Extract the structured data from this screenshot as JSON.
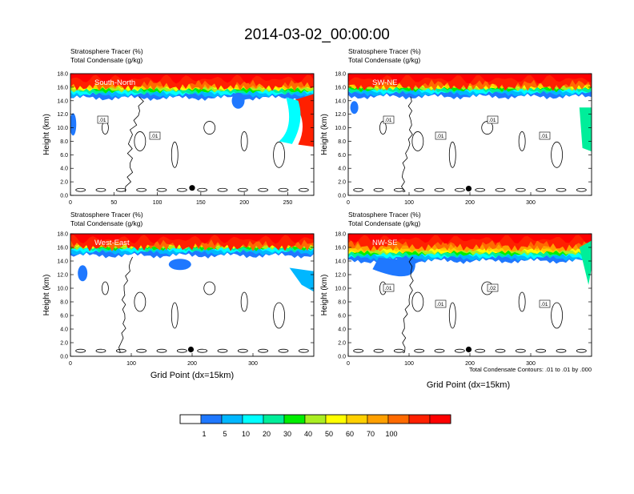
{
  "title": "2014-03-02_00:00:00",
  "panel_header": {
    "line1": "Stratosphere Tracer   (%)",
    "line2": "Total Condensate   (g/kg)"
  },
  "ylabel": "Height (km)",
  "xlabel": "Grid Point (dx=15km)",
  "contour_note": "Total Condensate Contours: .01 to .01 by .000",
  "colorbar": {
    "colors": [
      "#ffffff",
      "#1f78ff",
      "#00b7ff",
      "#00ffff",
      "#00ee9a",
      "#00ee00",
      "#aaee22",
      "#ffff00",
      "#ffd000",
      "#ffa000",
      "#ff6a00",
      "#ff2000",
      "#ff0000"
    ],
    "labels": [
      "1",
      "5",
      "10",
      "20",
      "30",
      "40",
      "50",
      "60",
      "70",
      "100"
    ]
  },
  "chart_data": [
    {
      "type": "heatmap",
      "name": "South-North",
      "xlim": [
        0,
        280
      ],
      "ylim": [
        0,
        18
      ],
      "x_ticks": [
        "0",
        "50",
        "100",
        "150",
        "200",
        "250"
      ],
      "y_ticks": [
        "0.0",
        "2.0",
        "4.0",
        "6.0",
        "8.0",
        "10.0",
        "12.0",
        "14.0",
        "16.0",
        "18.0"
      ],
      "contour_labels": [
        ".01",
        ".01"
      ],
      "marker": {
        "x": 140,
        "y": 1.1
      }
    },
    {
      "type": "heatmap",
      "name": "SW-NE",
      "xlim": [
        0,
        400
      ],
      "ylim": [
        0,
        18
      ],
      "x_ticks": [
        "0",
        "100",
        "200",
        "300"
      ],
      "y_ticks": [
        "0.0",
        "2.0",
        "4.0",
        "6.0",
        "8.0",
        "10.0",
        "12.0",
        "14.0",
        "16.0",
        "18.0"
      ],
      "contour_labels": [
        ".01",
        ".01",
        ".01",
        ".01"
      ],
      "marker": {
        "x": 198,
        "y": 1.0
      }
    },
    {
      "type": "heatmap",
      "name": "West-East",
      "xlim": [
        0,
        400
      ],
      "ylim": [
        0,
        18
      ],
      "x_ticks": [
        "0",
        "100",
        "200",
        "300"
      ],
      "y_ticks": [
        "0.0",
        "2.0",
        "4.0",
        "6.0",
        "8.0",
        "10.0",
        "12.0",
        "14.0",
        "16.0",
        "18.0"
      ],
      "contour_labels": [],
      "marker": {
        "x": 198,
        "y": 1.0
      }
    },
    {
      "type": "heatmap",
      "name": "NW-SE",
      "xlim": [
        0,
        400
      ],
      "ylim": [
        0,
        18
      ],
      "x_ticks": [
        "0",
        "100",
        "200",
        "300"
      ],
      "y_ticks": [
        "0.0",
        "2.0",
        "4.0",
        "6.0",
        "8.0",
        "10.0",
        "12.0",
        "14.0",
        "16.0",
        "18.0"
      ],
      "contour_labels": [
        ".01",
        ".01",
        ".02",
        ".01"
      ],
      "marker": {
        "x": 198,
        "y": 1.0
      }
    }
  ]
}
